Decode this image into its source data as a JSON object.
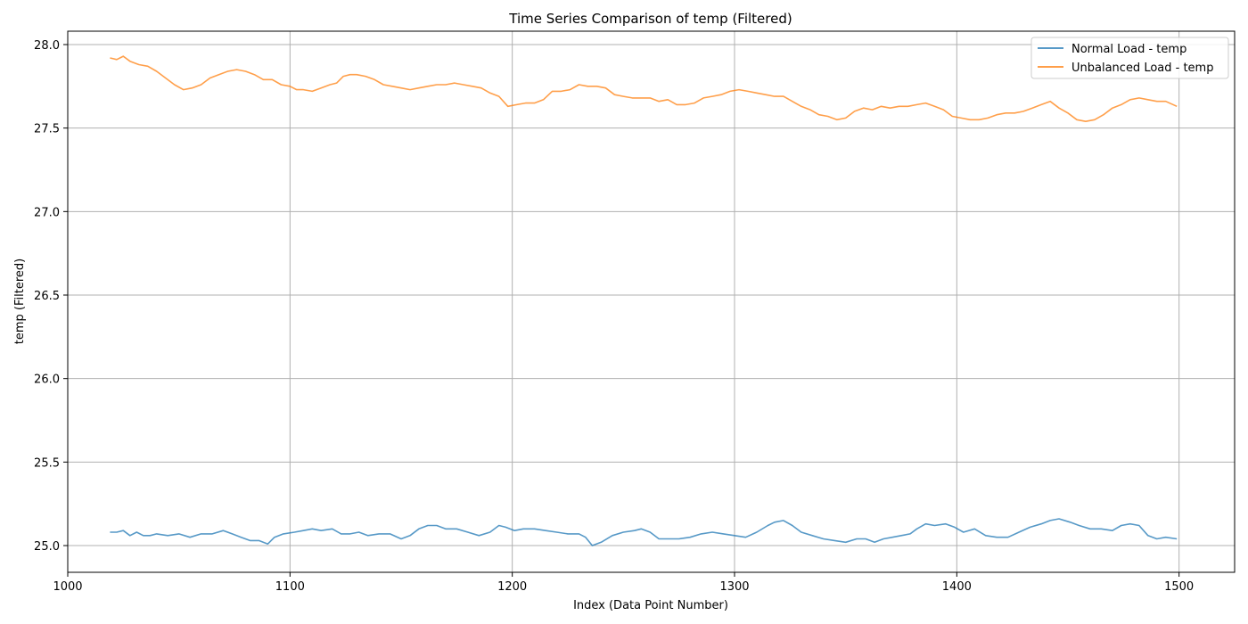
{
  "chart_data": {
    "type": "line",
    "title": "Time Series Comparison of temp (Filtered)",
    "xlabel": "Index (Data Point Number)",
    "ylabel": "temp (Filtered)",
    "xlim": [
      1000,
      1525
    ],
    "ylim": [
      24.84,
      28.08
    ],
    "xticks": [
      1000,
      1100,
      1200,
      1300,
      1400,
      1500
    ],
    "yticks": [
      25.0,
      25.5,
      26.0,
      26.5,
      27.0,
      27.5,
      28.0
    ],
    "xtick_labels": [
      "1000",
      "1100",
      "1200",
      "1300",
      "1400",
      "1500"
    ],
    "ytick_labels": [
      "25.0",
      "25.5",
      "26.0",
      "26.5",
      "27.0",
      "27.5",
      "28.0"
    ],
    "grid": true,
    "legend_position": "top-right",
    "series": [
      {
        "name": "Normal Load - temp",
        "color": "#1f77b4",
        "x": [
          1019,
          1022,
          1025,
          1028,
          1031,
          1034,
          1037,
          1040,
          1045,
          1050,
          1055,
          1060,
          1065,
          1070,
          1074,
          1078,
          1082,
          1086,
          1090,
          1093,
          1097,
          1102,
          1106,
          1110,
          1114,
          1119,
          1123,
          1127,
          1131,
          1135,
          1140,
          1145,
          1150,
          1154,
          1158,
          1162,
          1166,
          1170,
          1175,
          1180,
          1185,
          1190,
          1194,
          1197,
          1201,
          1205,
          1210,
          1215,
          1220,
          1225,
          1230,
          1233,
          1236,
          1240,
          1245,
          1250,
          1255,
          1258,
          1262,
          1266,
          1270,
          1275,
          1280,
          1285,
          1290,
          1295,
          1300,
          1305,
          1310,
          1315,
          1318,
          1322,
          1326,
          1330,
          1335,
          1340,
          1345,
          1350,
          1355,
          1359,
          1363,
          1367,
          1371,
          1375,
          1379,
          1382,
          1386,
          1390,
          1395,
          1399,
          1403,
          1408,
          1413,
          1418,
          1423,
          1428,
          1433,
          1438,
          1442,
          1446,
          1451,
          1455,
          1460,
          1465,
          1470,
          1474,
          1478,
          1482,
          1486,
          1490,
          1494,
          1499
        ],
        "y": [
          25.08,
          25.08,
          25.09,
          25.06,
          25.08,
          25.06,
          25.06,
          25.07,
          25.06,
          25.07,
          25.05,
          25.07,
          25.07,
          25.09,
          25.07,
          25.05,
          25.03,
          25.03,
          25.01,
          25.05,
          25.07,
          25.08,
          25.09,
          25.1,
          25.09,
          25.1,
          25.07,
          25.07,
          25.08,
          25.06,
          25.07,
          25.07,
          25.04,
          25.06,
          25.1,
          25.12,
          25.12,
          25.1,
          25.1,
          25.08,
          25.06,
          25.08,
          25.12,
          25.11,
          25.09,
          25.1,
          25.1,
          25.09,
          25.08,
          25.07,
          25.07,
          25.05,
          25.0,
          25.02,
          25.06,
          25.08,
          25.09,
          25.1,
          25.08,
          25.04,
          25.04,
          25.04,
          25.05,
          25.07,
          25.08,
          25.07,
          25.06,
          25.05,
          25.08,
          25.12,
          25.14,
          25.15,
          25.12,
          25.08,
          25.06,
          25.04,
          25.03,
          25.02,
          25.04,
          25.04,
          25.02,
          25.04,
          25.05,
          25.06,
          25.07,
          25.1,
          25.13,
          25.12,
          25.13,
          25.11,
          25.08,
          25.1,
          25.06,
          25.05,
          25.05,
          25.08,
          25.11,
          25.13,
          25.15,
          25.16,
          25.14,
          25.12,
          25.1,
          25.1,
          25.09,
          25.12,
          25.13,
          25.12,
          25.06,
          25.04,
          25.05,
          25.04
        ]
      },
      {
        "name": "Unbalanced Load - temp",
        "color": "#ff7f0e",
        "x": [
          1019,
          1022,
          1025,
          1028,
          1032,
          1036,
          1040,
          1044,
          1048,
          1052,
          1056,
          1060,
          1064,
          1068,
          1072,
          1076,
          1080,
          1084,
          1088,
          1092,
          1096,
          1100,
          1103,
          1106,
          1110,
          1114,
          1118,
          1121,
          1124,
          1127,
          1130,
          1134,
          1138,
          1142,
          1146,
          1150,
          1154,
          1158,
          1162,
          1166,
          1170,
          1174,
          1178,
          1182,
          1186,
          1190,
          1194,
          1198,
          1202,
          1206,
          1210,
          1214,
          1218,
          1222,
          1226,
          1230,
          1234,
          1238,
          1242,
          1246,
          1250,
          1254,
          1258,
          1262,
          1266,
          1270,
          1274,
          1278,
          1282,
          1286,
          1290,
          1294,
          1298,
          1302,
          1306,
          1310,
          1314,
          1318,
          1322,
          1326,
          1330,
          1334,
          1338,
          1342,
          1346,
          1350,
          1354,
          1358,
          1362,
          1366,
          1370,
          1374,
          1378,
          1382,
          1386,
          1390,
          1394,
          1398,
          1402,
          1406,
          1410,
          1414,
          1418,
          1422,
          1426,
          1430,
          1434,
          1438,
          1442,
          1446,
          1450,
          1454,
          1458,
          1462,
          1466,
          1470,
          1474,
          1478,
          1482,
          1486,
          1490,
          1494,
          1499
        ],
        "y": [
          27.92,
          27.91,
          27.93,
          27.9,
          27.88,
          27.87,
          27.84,
          27.8,
          27.76,
          27.73,
          27.74,
          27.76,
          27.8,
          27.82,
          27.84,
          27.85,
          27.84,
          27.82,
          27.79,
          27.79,
          27.76,
          27.75,
          27.73,
          27.73,
          27.72,
          27.74,
          27.76,
          27.77,
          27.81,
          27.82,
          27.82,
          27.81,
          27.79,
          27.76,
          27.75,
          27.74,
          27.73,
          27.74,
          27.75,
          27.76,
          27.76,
          27.77,
          27.76,
          27.75,
          27.74,
          27.71,
          27.69,
          27.63,
          27.64,
          27.65,
          27.65,
          27.67,
          27.72,
          27.72,
          27.73,
          27.76,
          27.75,
          27.75,
          27.74,
          27.7,
          27.69,
          27.68,
          27.68,
          27.68,
          27.66,
          27.67,
          27.64,
          27.64,
          27.65,
          27.68,
          27.69,
          27.7,
          27.72,
          27.73,
          27.72,
          27.71,
          27.7,
          27.69,
          27.69,
          27.66,
          27.63,
          27.61,
          27.58,
          27.57,
          27.55,
          27.56,
          27.6,
          27.62,
          27.61,
          27.63,
          27.62,
          27.63,
          27.63,
          27.64,
          27.65,
          27.63,
          27.61,
          27.57,
          27.56,
          27.55,
          27.55,
          27.56,
          27.58,
          27.59,
          27.59,
          27.6,
          27.62,
          27.64,
          27.66,
          27.62,
          27.59,
          27.55,
          27.54,
          27.55,
          27.58,
          27.62,
          27.64,
          27.67,
          27.68,
          27.67,
          27.66,
          27.66,
          27.63
        ]
      }
    ]
  }
}
